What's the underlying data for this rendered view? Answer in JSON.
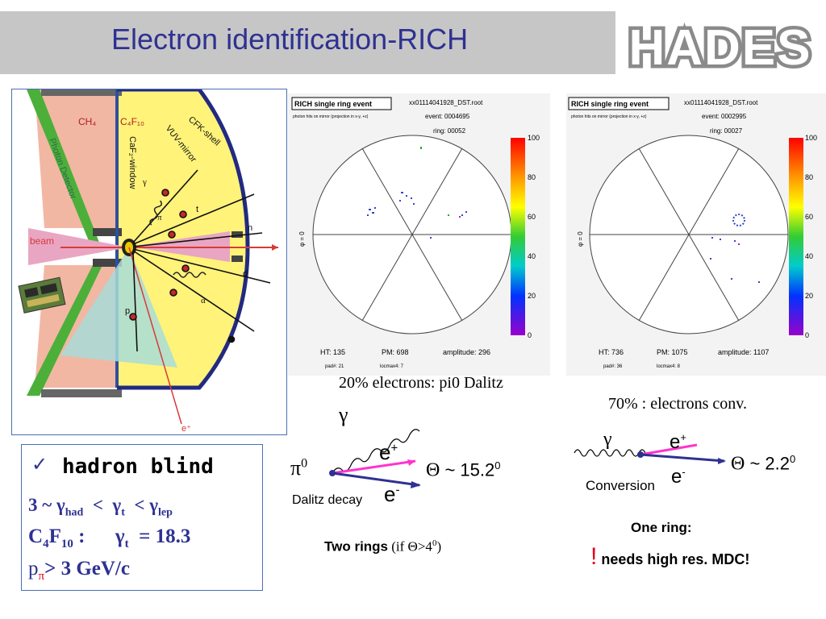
{
  "slide": {
    "title": "Electron identification-RICH",
    "logo_text": "HADES"
  },
  "detector": {
    "labels": {
      "ch4": "CH₄",
      "c4f10": "C₄F₁₀",
      "caf2": "CaF₂-window",
      "vuv": "VUV-mirror",
      "cfk": "CFK-shell",
      "photon_detector": "Photon Detector",
      "beam": "beam",
      "gamma": "γ",
      "pi": "π",
      "t": "t",
      "n": "n",
      "d": "d",
      "alpha": "α",
      "p": "p",
      "eplus": "e⁺"
    }
  },
  "panels": {
    "left": {
      "box_title": "RICH single ring event",
      "file": "xx01114041928_DST.root",
      "subtitle": "photon hits on mirror (projection in x-y, +z)",
      "event": "event: 0004695",
      "ring": "ring: 00052",
      "phi": "φ = 0",
      "ht": "HT: 135",
      "pm": "PM: 698",
      "amplitude": "amplitude: 296",
      "padn": "pad#: 21",
      "locmax": "locmax4: 7",
      "scale": [
        "100",
        "80",
        "60",
        "40",
        "20",
        "0"
      ]
    },
    "right": {
      "box_title": "RICH single ring event",
      "file": "xx01114041928_DST.root",
      "subtitle": "photon hits on mirror (projection in x-y, +z)",
      "event": "event: 0002995",
      "ring": "ring: 00027",
      "phi": "φ = 0",
      "ht": "HT: 736",
      "pm": "PM: 1075",
      "amplitude": "amplitude: 1107",
      "padn": "pad#: 36",
      "locmax": "locmax4: 8",
      "scale": [
        "100",
        "80",
        "60",
        "40",
        "20",
        "0"
      ]
    }
  },
  "captions": {
    "left": "20% electrons: pi0 Dalitz",
    "right": "70% : electrons conv."
  },
  "dalitz": {
    "gamma": "γ",
    "pi0": "π",
    "pi0_sup": "0",
    "eplus": "e",
    "eplus_sup": "+",
    "eminus": "e",
    "eminus_sup": "-",
    "theta": "Θ",
    "angle": " ~ 15.2",
    "angle_sup": "0",
    "label": "Dalitz decay",
    "two_rings": "Two rings",
    "condition": " (if Θ>4",
    "condition_sup": "0",
    "condition_end": ")"
  },
  "conversion": {
    "gamma": "γ",
    "eplus": "e",
    "eplus_sup": "+",
    "eminus": "e",
    "eminus_sup": "-",
    "theta": "Θ",
    "angle": " ~ 2.2",
    "angle_sup": "0",
    "label": "Conversion",
    "one_ring": "One ring:",
    "exclaim": "!",
    "needs": " needs high res. MDC!"
  },
  "hadron": {
    "check": "✓",
    "heading": "hadron blind",
    "line1": "3 ~ γ",
    "line1_sub": "had",
    "line1_mid": "  <  γ",
    "line1_sub2": "t",
    "line1_mid2": "  < γ",
    "line1_sub3": "lep",
    "line2a": "C",
    "line2_sub1": "4",
    "line2b": "F",
    "line2_sub2": "10",
    "line2c": " :      γ",
    "line2_sub3": "t",
    "line2d": "  = 18.3",
    "line3a": "p",
    "line3_sub": "π",
    "line3b": "> 3 GeV/c"
  },
  "colors": {
    "title_blue": "#2e3192",
    "header_gray": "#c6c6c6",
    "pink_track": "#ff33cc",
    "blue_track": "#2e3192",
    "red_exclaim": "#e0001b"
  }
}
